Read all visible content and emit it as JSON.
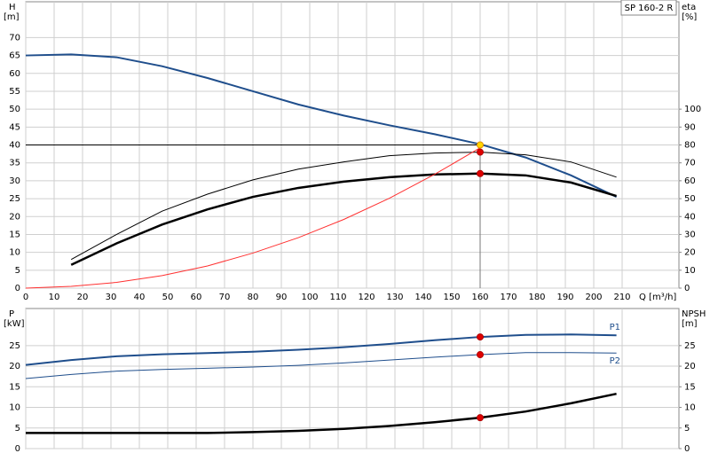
{
  "chart_data": [
    {
      "type": "line",
      "title": "SP 160-2 R",
      "y_label": "H",
      "y_unit": "[m]",
      "y2_label": "eta",
      "y2_unit": "[%]",
      "x_label": "Q [m³/h]",
      "x": [
        0,
        16,
        32,
        48,
        64,
        80,
        96,
        112,
        128,
        144,
        160,
        176,
        192,
        208
      ],
      "xlim": [
        0,
        230
      ],
      "xticks": [
        0,
        10,
        20,
        30,
        40,
        50,
        60,
        70,
        80,
        90,
        100,
        110,
        120,
        130,
        140,
        150,
        160,
        170,
        180,
        190,
        200,
        210
      ],
      "ylim": [
        0,
        80
      ],
      "yticks": [
        0,
        5,
        10,
        15,
        20,
        25,
        30,
        35,
        40,
        45,
        50,
        55,
        60,
        65,
        70
      ],
      "y2lim": [
        0,
        160
      ],
      "y2ticks": [
        0,
        10,
        20,
        30,
        40,
        50,
        60,
        70,
        80,
        90,
        100
      ],
      "grid": true,
      "series": [
        {
          "color": "#1f4e8c",
          "width": 2,
          "values": [
            65,
            65.3,
            64.5,
            62,
            58.7,
            55,
            51.3,
            48.2,
            45.5,
            43,
            40.2,
            36.5,
            31.5,
            25.5
          ]
        },
        {
          "color": "#000000",
          "width": 1,
          "axis": "y2",
          "values": [
            null,
            16,
            30,
            43,
            52.5,
            60.5,
            66.5,
            70.5,
            74,
            75.5,
            76,
            74.5,
            70.5,
            62
          ]
        },
        {
          "color": "#000000",
          "width": 2.5,
          "axis": "y2",
          "values": [
            null,
            13,
            25,
            35.5,
            44,
            51,
            56,
            59.5,
            62,
            63.5,
            64,
            63,
            59,
            51.5
          ]
        },
        {
          "color": "#ff3030",
          "width": 1,
          "values": [
            0,
            0.5,
            1.6,
            3.5,
            6.2,
            9.8,
            14.1,
            19.2,
            25.1,
            31.8,
            39.2,
            null,
            null,
            null
          ]
        }
      ],
      "duty": {
        "x": 160,
        "y": 40
      },
      "markers": [
        {
          "x": 160,
          "y": 40,
          "color": "#ffd700"
        },
        {
          "x": 160,
          "y": 76,
          "axis": "y2",
          "color": "#e00000"
        },
        {
          "x": 160,
          "y": 64,
          "axis": "y2",
          "color": "#e00000"
        }
      ]
    },
    {
      "type": "line",
      "y_label": "P",
      "y_unit": "[kW]",
      "y2_label": "NPSH",
      "y2_unit": "[m]",
      "x": [
        0,
        16,
        32,
        48,
        64,
        80,
        96,
        112,
        128,
        144,
        160,
        176,
        192,
        208
      ],
      "xlim": [
        0,
        230
      ],
      "xticks": [
        0,
        10,
        20,
        30,
        40,
        50,
        60,
        70,
        80,
        90,
        100,
        110,
        120,
        130,
        140,
        150,
        160,
        170,
        180,
        190,
        200,
        210
      ],
      "ylim": [
        0,
        34
      ],
      "yticks": [
        0,
        5,
        10,
        15,
        20,
        25
      ],
      "y2lim": [
        0,
        34
      ],
      "y2ticks": [
        0,
        5,
        10,
        15,
        20,
        25
      ],
      "grid": true,
      "series": [
        {
          "name": "P1",
          "color": "#1f4e8c",
          "width": 2,
          "values": [
            20.3,
            21.5,
            22.4,
            22.9,
            23.2,
            23.5,
            24,
            24.6,
            25.4,
            26.3,
            27.1,
            27.6,
            27.7,
            27.5
          ]
        },
        {
          "name": "P2",
          "color": "#1f4e8c",
          "width": 1,
          "values": [
            17,
            18,
            18.8,
            19.2,
            19.5,
            19.8,
            20.2,
            20.8,
            21.5,
            22.2,
            22.8,
            23.3,
            23.3,
            23.2
          ]
        },
        {
          "color": "#000000",
          "width": 2.5,
          "axis": "y2",
          "values": [
            3.8,
            3.8,
            3.8,
            3.8,
            3.8,
            4,
            4.3,
            4.8,
            5.5,
            6.4,
            7.5,
            9,
            11,
            13.3
          ]
        }
      ],
      "markers": [
        {
          "x": 160,
          "y": 27.1,
          "color": "#e00000"
        },
        {
          "x": 160,
          "y": 22.8,
          "color": "#e00000"
        },
        {
          "x": 160,
          "y": 7.5,
          "axis": "y2",
          "color": "#e00000"
        }
      ]
    }
  ]
}
